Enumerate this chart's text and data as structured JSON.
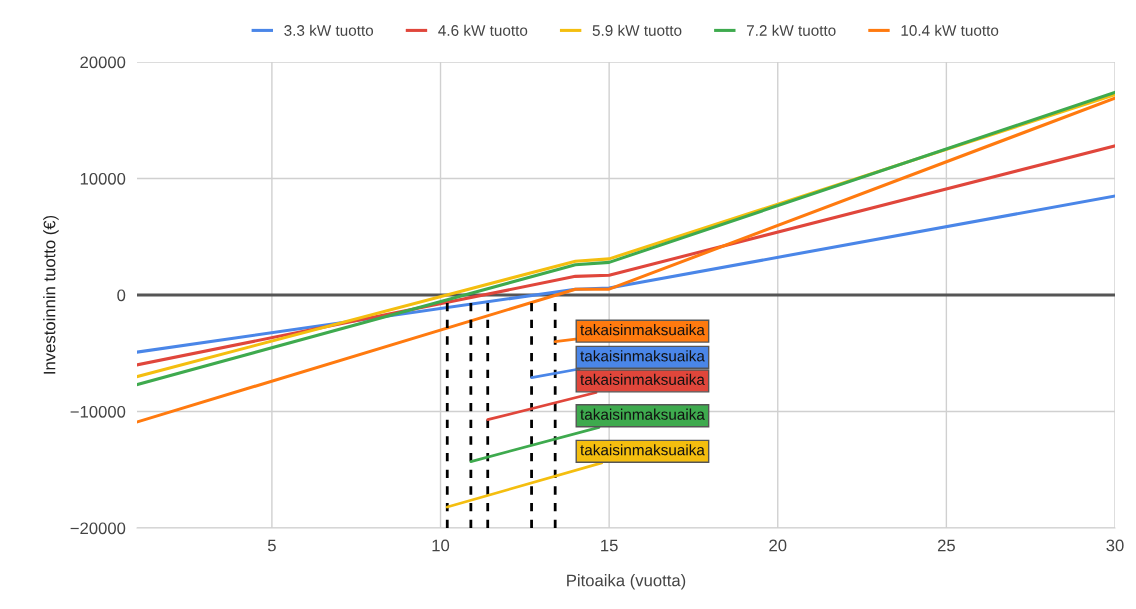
{
  "chart_data": {
    "type": "line",
    "xlabel": "Pitoaika (vuotta)",
    "ylabel": "Investoinnin tuotto (€)",
    "xlim": [
      1,
      30
    ],
    "xticks": [
      5,
      10,
      15,
      20,
      25,
      30
    ],
    "ylim": [
      -20000,
      20000
    ],
    "yticks": [
      {
        "value": -20000,
        "label": "−20000"
      },
      {
        "value": -10000,
        "label": "−10000"
      },
      0,
      10000,
      20000
    ],
    "grid": true,
    "legend": "top",
    "line_style": "solid",
    "marker": "none",
    "series": [
      {
        "name": "3.3 kW tuotto",
        "color": "#4a86e8",
        "x": [
          1,
          14,
          15,
          30
        ],
        "values": [
          -4900,
          500,
          600,
          8500
        ]
      },
      {
        "name": "4.6 kW tuotto",
        "color": "#e0463b",
        "x": [
          1,
          14,
          15,
          30
        ],
        "values": [
          -6000,
          1600,
          1700,
          12800
        ]
      },
      {
        "name": "5.9 kW tuotto",
        "color": "#f4be0f",
        "x": [
          1,
          14,
          15,
          30
        ],
        "values": [
          -7000,
          2900,
          3100,
          17200
        ]
      },
      {
        "name": "7.2 kW tuotto",
        "color": "#3eaa4e",
        "x": [
          1,
          14,
          15,
          30
        ],
        "values": [
          -7700,
          2600,
          2800,
          17400
        ]
      },
      {
        "name": "10.4 kW tuotto",
        "color": "#ff7a0f",
        "x": [
          1,
          14,
          15,
          30
        ],
        "values": [
          -10900,
          500,
          500,
          16900
        ]
      }
    ],
    "ref_lines": [
      {
        "axis": "y",
        "value": 0,
        "color": "#555555",
        "line_style": "solid"
      },
      {
        "axis": "x",
        "value": 10.2,
        "color": "#000000",
        "line_style": "dashed"
      },
      {
        "axis": "x",
        "value": 10.9,
        "color": "#000000",
        "line_style": "dashed"
      },
      {
        "axis": "x",
        "value": 11.4,
        "color": "#000000",
        "line_style": "dashed"
      },
      {
        "axis": "x",
        "value": 12.7,
        "color": "#000000",
        "line_style": "dashed"
      },
      {
        "axis": "x",
        "value": 13.4,
        "color": "#000000",
        "line_style": "dashed"
      }
    ],
    "annotations": [
      {
        "text": "takaisinmaksuaika",
        "x": 13.4,
        "y": -4000
      },
      {
        "text": "takaisinmaksuaika",
        "x": 12.7,
        "y": -7100
      },
      {
        "text": "takaisinmaksuaika",
        "x": 11.4,
        "y": -10700
      },
      {
        "text": "takaisinmaksuaika",
        "x": 10.9,
        "y": -14300
      },
      {
        "text": "takaisinmaksuaika",
        "x": 10.2,
        "y": -18200
      }
    ]
  }
}
